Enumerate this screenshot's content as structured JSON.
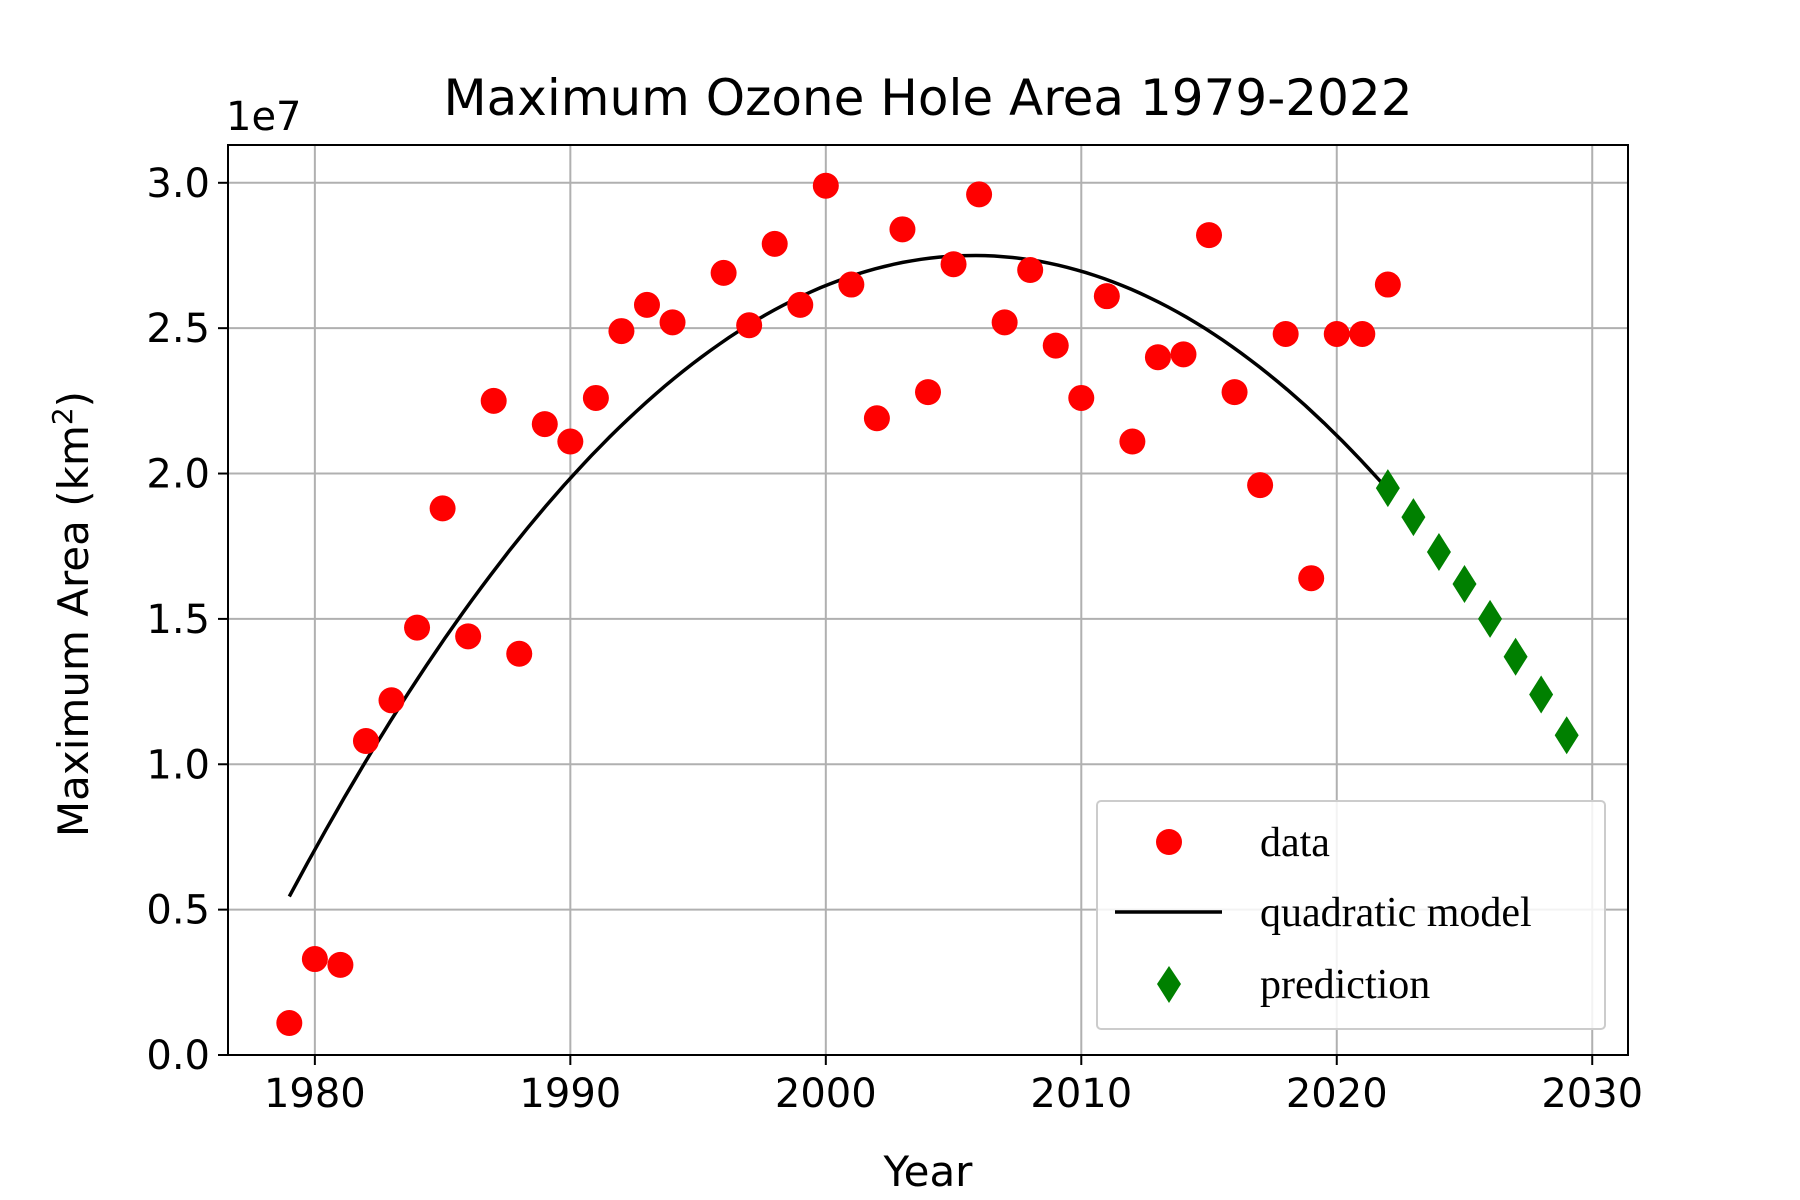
{
  "chart_data": {
    "type": "scatter",
    "title": "Maximum Ozone Hole Area 1979-2022",
    "xlabel": "Year",
    "ylabel": "Maximum Area (km",
    "ylabel_sup": "2",
    "ylabel_end": ")",
    "y_offset_label": "1e7",
    "xlim": [
      1976.6,
      2031.4
    ],
    "ylim": [
      0,
      3.13
    ],
    "y_unit_scale": 10000000,
    "x_ticks": [
      1980,
      1990,
      2000,
      2010,
      2020,
      2030
    ],
    "x_tick_labels": [
      "1980",
      "1990",
      "2000",
      "2010",
      "2020",
      "2030"
    ],
    "y_ticks": [
      0.0,
      0.5,
      1.0,
      1.5,
      2.0,
      2.5,
      3.0
    ],
    "y_tick_labels": [
      "0.0",
      "0.5",
      "1.0",
      "1.5",
      "2.0",
      "2.5",
      "3.0"
    ],
    "grid": true,
    "legend_position": "lower-right",
    "legend": [
      {
        "label": "data",
        "marker": "circle",
        "color": "#ff0000"
      },
      {
        "label": "quadratic model",
        "marker": "line",
        "color": "#000000"
      },
      {
        "label": "prediction",
        "marker": "diamond",
        "color": "#008000"
      }
    ],
    "series": [
      {
        "name": "data",
        "kind": "scatter",
        "marker": "circle",
        "color": "#ff0000",
        "x": [
          1979,
          1980,
          1981,
          1982,
          1983,
          1984,
          1985,
          1986,
          1987,
          1988,
          1989,
          1990,
          1991,
          1992,
          1993,
          1994,
          1996,
          1997,
          1998,
          1999,
          2000,
          2001,
          2002,
          2003,
          2004,
          2005,
          2006,
          2007,
          2008,
          2009,
          2010,
          2011,
          2012,
          2013,
          2014,
          2015,
          2016,
          2017,
          2018,
          2019,
          2020,
          2021,
          2022
        ],
        "y": [
          0.11,
          0.33,
          0.31,
          1.08,
          1.22,
          1.47,
          1.88,
          1.44,
          2.25,
          1.38,
          2.17,
          2.11,
          2.26,
          2.49,
          2.58,
          2.52,
          2.69,
          2.51,
          2.79,
          2.58,
          2.99,
          2.65,
          2.19,
          2.84,
          2.28,
          2.72,
          2.96,
          2.52,
          2.7,
          2.44,
          2.26,
          2.61,
          2.11,
          2.4,
          2.41,
          2.82,
          2.28,
          1.96,
          2.48,
          1.64,
          2.48,
          2.48,
          2.65
        ]
      },
      {
        "name": "quadratic model",
        "kind": "line",
        "color": "#000000",
        "x_range": [
          1979,
          2022
        ],
        "coefficients": {
          "vertex_x": 2005.8,
          "vertex_y": 2.75,
          "a": -0.00307
        }
      },
      {
        "name": "prediction",
        "kind": "scatter",
        "marker": "diamond",
        "color": "#008000",
        "x": [
          2022,
          2023,
          2024,
          2025,
          2026,
          2027,
          2028,
          2029
        ],
        "y": [
          1.95,
          1.85,
          1.73,
          1.62,
          1.5,
          1.37,
          1.24,
          1.1
        ]
      }
    ]
  }
}
